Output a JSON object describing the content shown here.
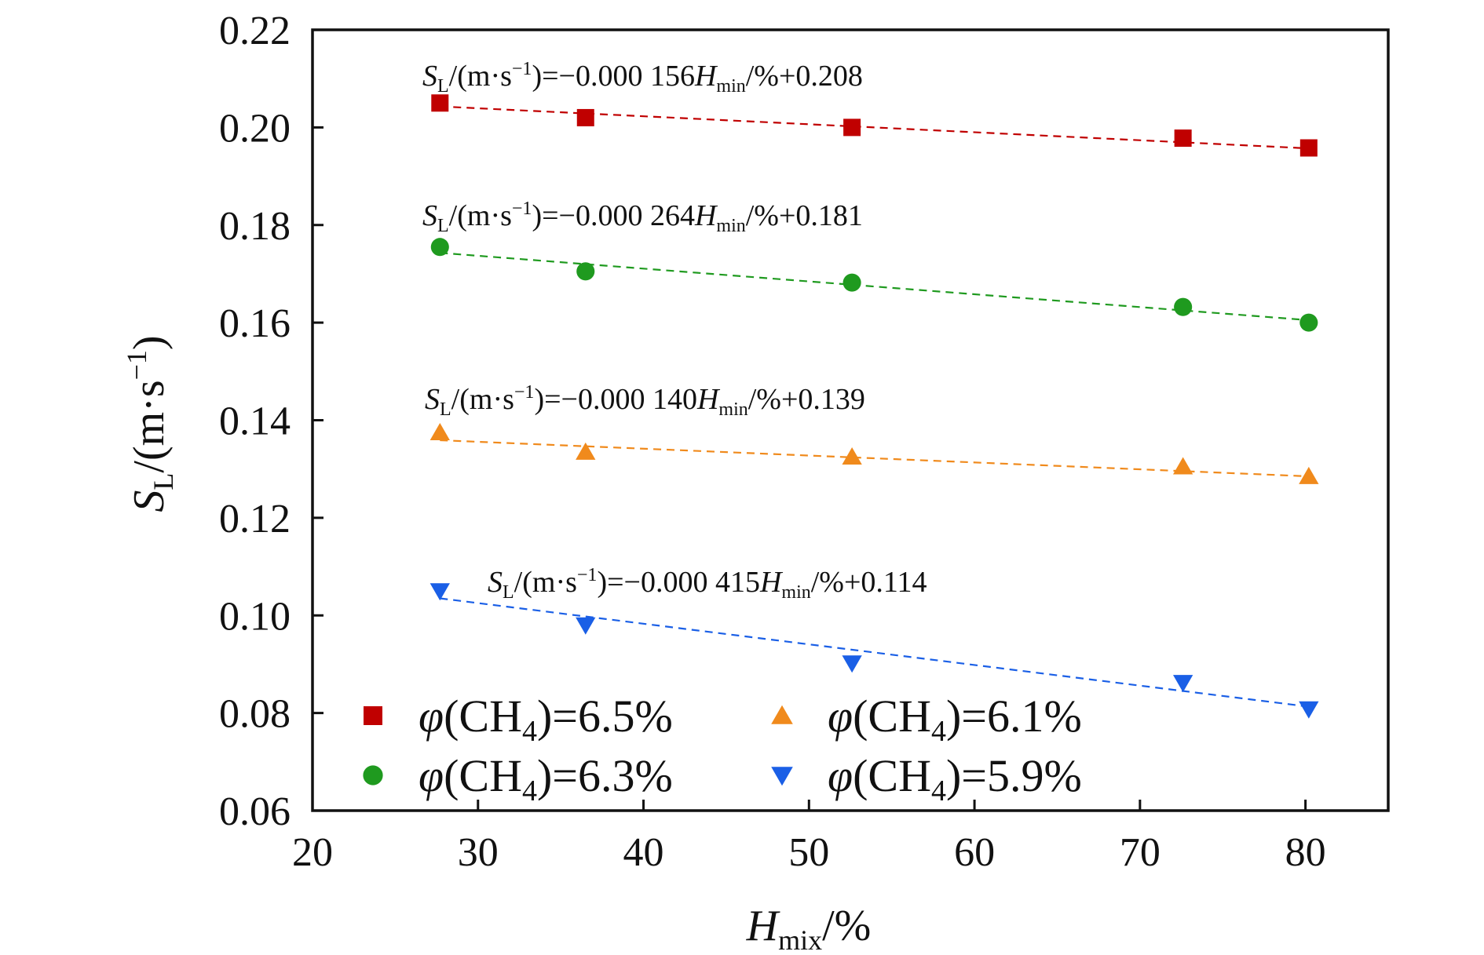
{
  "chart_data": {
    "type": "scatter",
    "xlabel": {
      "main": "H",
      "sub": "mix",
      "tail": "/%"
    },
    "ylabel": {
      "main": "S",
      "sub": "L",
      "pre": "/(m·s",
      "sup": "−1",
      "post": ")"
    },
    "xlim": [
      20,
      85
    ],
    "ylim": [
      0.06,
      0.22
    ],
    "xticks": [
      20,
      30,
      40,
      50,
      60,
      70,
      80
    ],
    "yticks": [
      0.06,
      0.08,
      0.1,
      0.12,
      0.14,
      0.16,
      0.18,
      0.2,
      0.22
    ],
    "xtick_labels": [
      "20",
      "30",
      "40",
      "50",
      "60",
      "70",
      "80"
    ],
    "ytick_labels": [
      "0.06",
      "0.08",
      "0.10",
      "0.12",
      "0.14",
      "0.16",
      "0.18",
      "0.20",
      "0.22"
    ],
    "legend_position": "bottom-left",
    "series": [
      {
        "key": "s65",
        "name": {
          "pre": "φ(CH",
          "sub": "4",
          "post": ")=6.5%"
        },
        "marker": "square",
        "color": "#c00000",
        "x": [
          27.7,
          36.5,
          52.6,
          72.6,
          80.2
        ],
        "y": [
          0.205,
          0.202,
          0.2,
          0.1978,
          0.1958
        ],
        "fit": [
          0.2043,
          0.1957
        ],
        "equation": {
          "parts": [
            "S",
            "L",
            "/(m·s",
            "−1",
            ")=−0.000 156",
            "H",
            "min",
            "/%+0.208"
          ]
        }
      },
      {
        "key": "s63",
        "name": {
          "pre": "φ(CH",
          "sub": "4",
          "post": ")=6.3%"
        },
        "marker": "circle",
        "color": "#1f9a1f",
        "x": [
          27.7,
          36.5,
          52.6,
          72.6,
          80.2
        ],
        "y": [
          0.1755,
          0.1705,
          0.1682,
          0.1632,
          0.16
        ],
        "fit": [
          0.1743,
          0.1605
        ],
        "equation": {
          "parts": [
            "S",
            "L",
            "/(m·s",
            "−1",
            ")=−0.000 264",
            "H",
            "min",
            "/%+0.181"
          ]
        }
      },
      {
        "key": "s61",
        "name": {
          "pre": "φ(CH",
          "sub": "4",
          "post": ")=6.1%"
        },
        "marker": "triangle-up",
        "color": "#f08a1c",
        "x": [
          27.7,
          36.5,
          52.6,
          72.6,
          80.2
        ],
        "y": [
          0.1375,
          0.1335,
          0.1325,
          0.1305,
          0.1285
        ],
        "fit": [
          0.1359,
          0.1285
        ],
        "equation": {
          "parts": [
            "S",
            "L",
            "/(m·s",
            "−1",
            ")=−0.000 140",
            "H",
            "min",
            "/%+0.139"
          ]
        }
      },
      {
        "key": "s59",
        "name": {
          "pre": "φ(CH",
          "sub": "4",
          "post": ")=5.9%"
        },
        "marker": "triangle-down",
        "color": "#1a5fe6",
        "x": [
          27.7,
          36.5,
          52.6,
          72.6,
          80.2
        ],
        "y": [
          0.105,
          0.098,
          0.0902,
          0.0862,
          0.0808
        ],
        "fit": [
          0.1035,
          0.0813
        ],
        "equation": {
          "parts": [
            "S",
            "L",
            "/(m·s",
            "−1",
            ")=−0.000 415",
            "H",
            "min",
            "/%+0.114"
          ]
        }
      }
    ]
  }
}
